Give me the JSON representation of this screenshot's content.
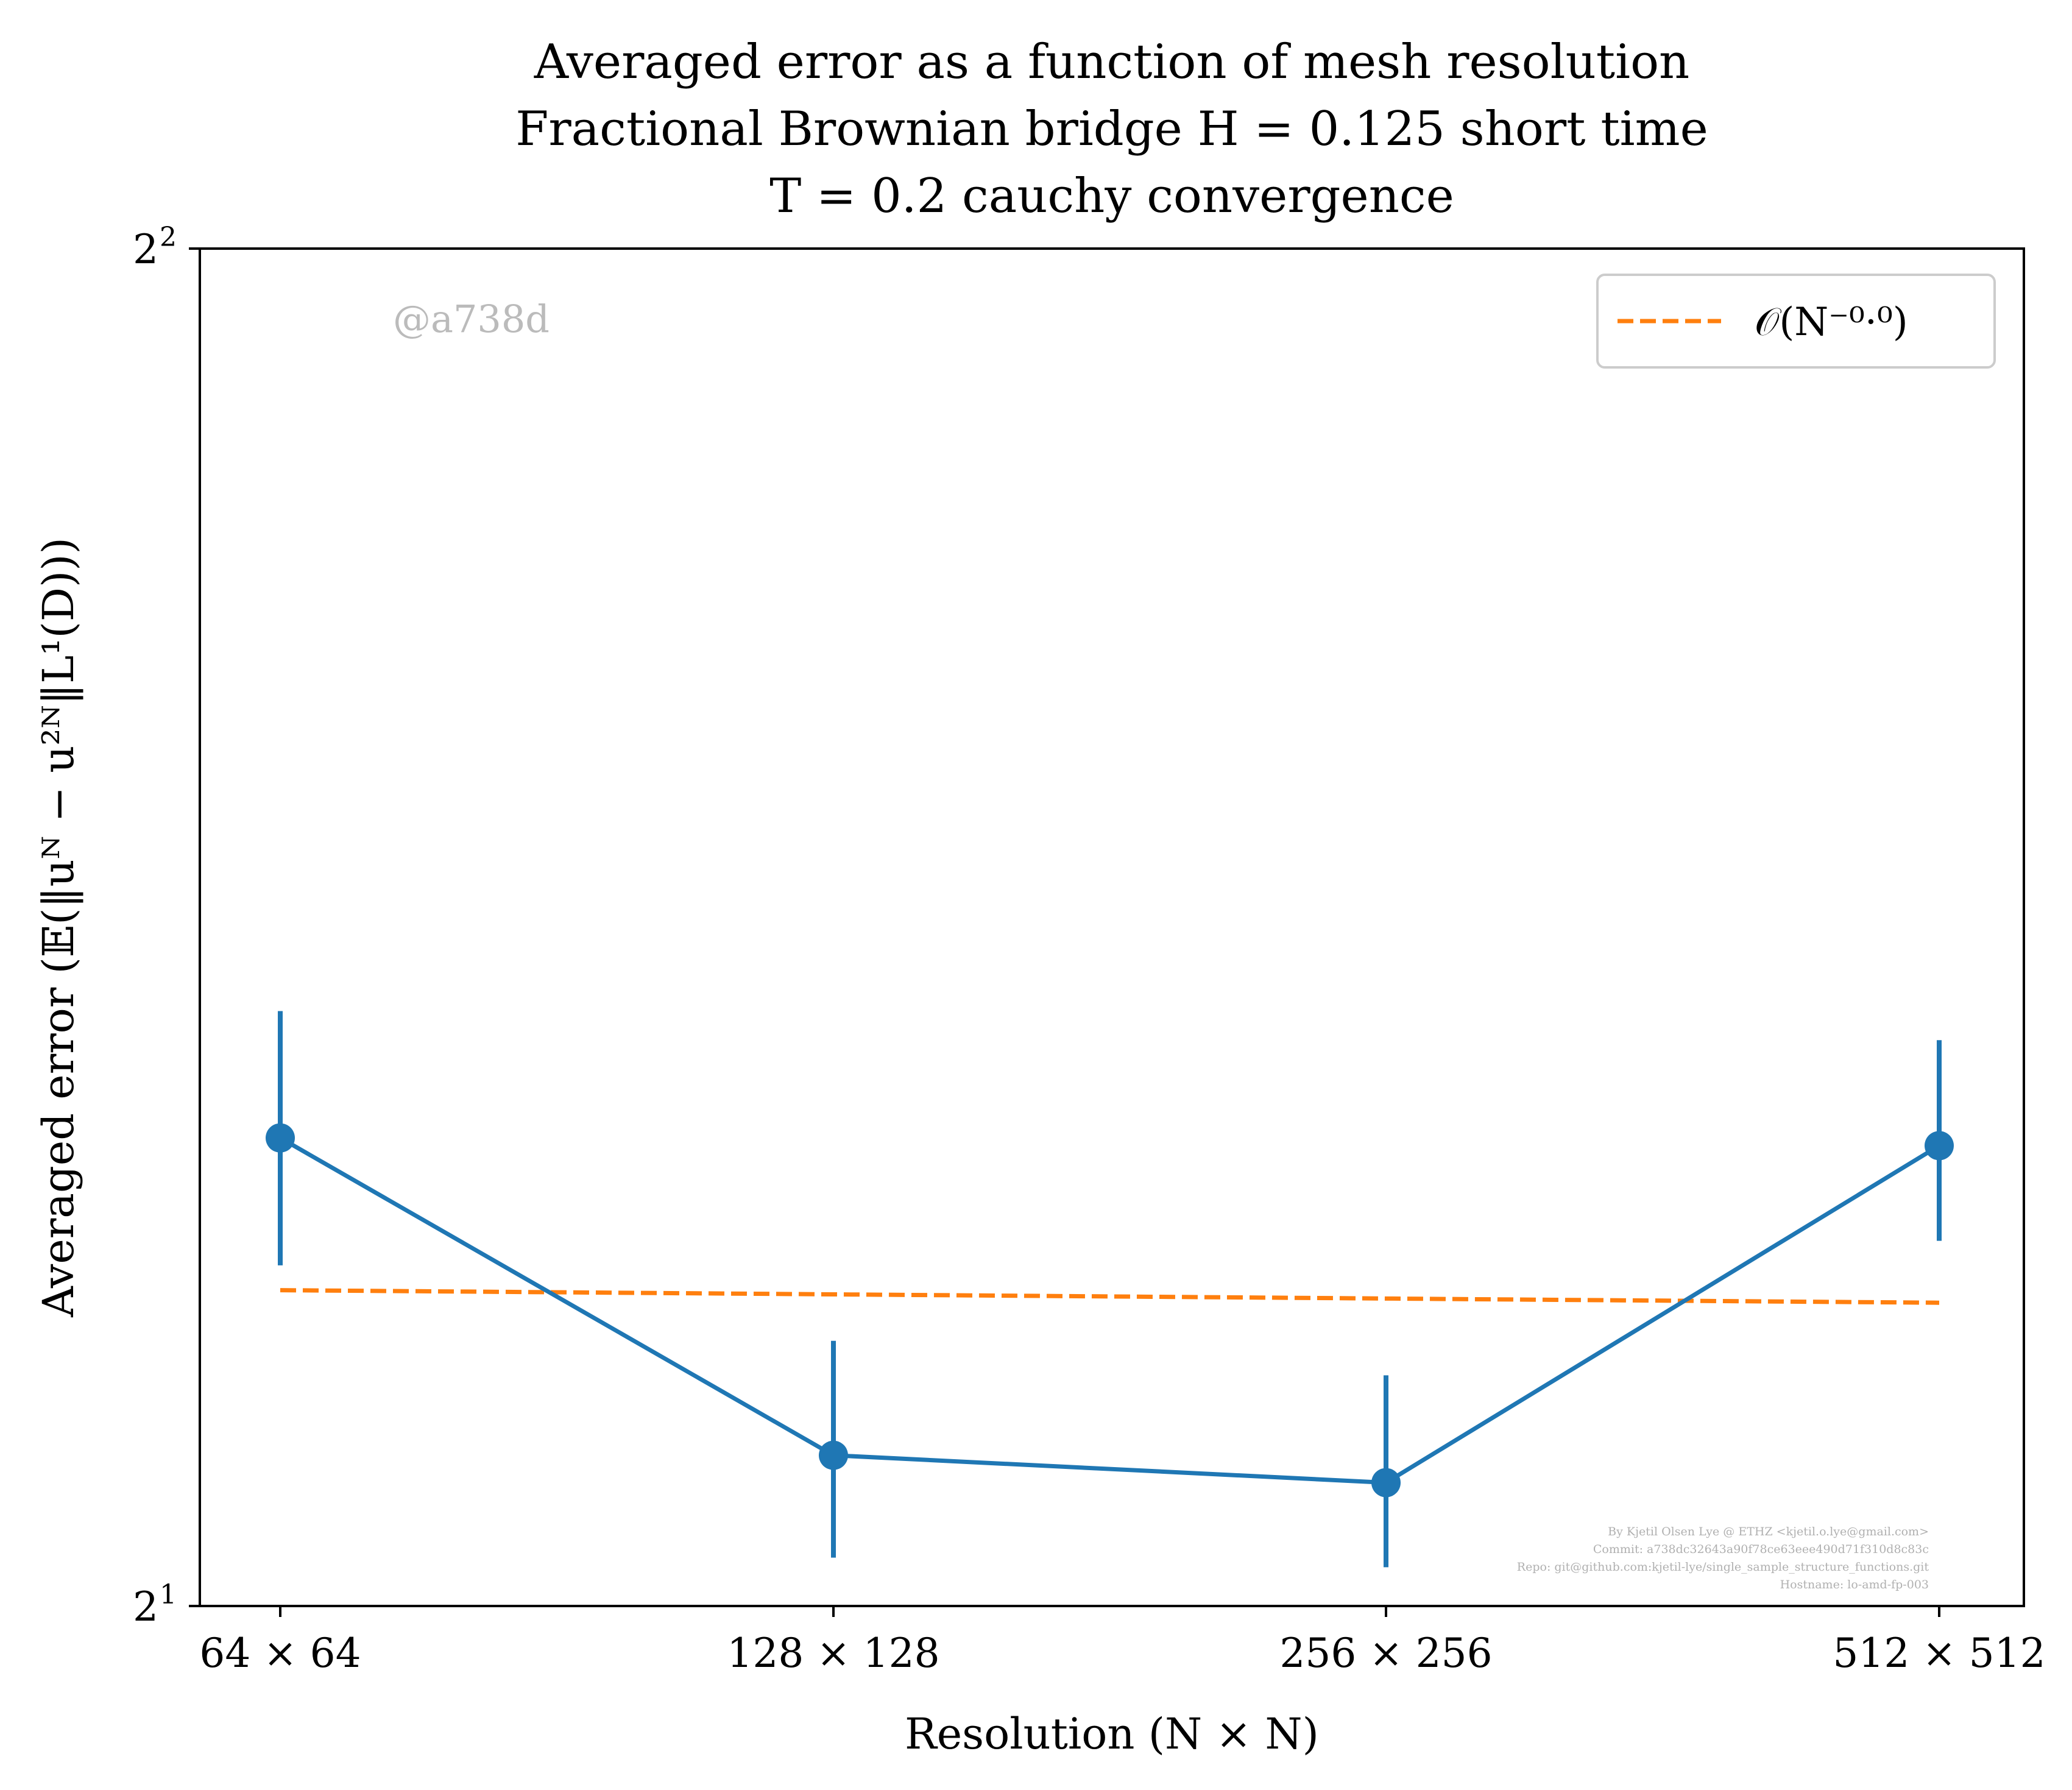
{
  "chart_data": {
    "type": "line",
    "title_lines": [
      "Averaged error as a function of mesh resolution",
      "Fractional Brownian bridge H = 0.125 short time",
      "T = 0.2 cauchy convergence"
    ],
    "xlabel": "Resolution (N × N)",
    "ylabel": "Averaged error (𝔼(‖uᴺ − u²ᴺ‖L¹(D)))",
    "categories": [
      "64 × 64",
      "128 × 128",
      "256 × 256",
      "512 × 512"
    ],
    "y_scale": "log2",
    "ylim": [
      2,
      4
    ],
    "y_ticks": [
      {
        "label": "2",
        "exp": "1",
        "value": 2
      },
      {
        "label": "2",
        "exp": "2",
        "value": 4
      }
    ],
    "grid": false,
    "legend_position": "top-right",
    "series": [
      {
        "color": "#1f77b4",
        "style": "solid",
        "marker": "circle",
        "values": [
          2.54,
          2.16,
          2.13,
          2.53
        ],
        "error_low": [
          2.38,
          2.05,
          2.04,
          2.41
        ],
        "error_high": [
          2.71,
          2.29,
          2.25,
          2.67
        ]
      },
      {
        "name": "𝒪(N⁻⁰·⁰)",
        "color": "#ff7f0e",
        "style": "dashed",
        "values": [
          2.35,
          2.345,
          2.34,
          2.335
        ]
      }
    ]
  },
  "watermark": "@a738d",
  "credits": [
    "By Kjetil Olsen Lye @ ETHZ <kjetil.o.lye@gmail.com>",
    "Commit: a738dc32643a90f78ce63eee490d71f310d8c83c",
    "Repo: git@github.com:kjetil-lye/single_sample_structure_functions.git",
    "Hostname: lo-amd-fp-003"
  ]
}
